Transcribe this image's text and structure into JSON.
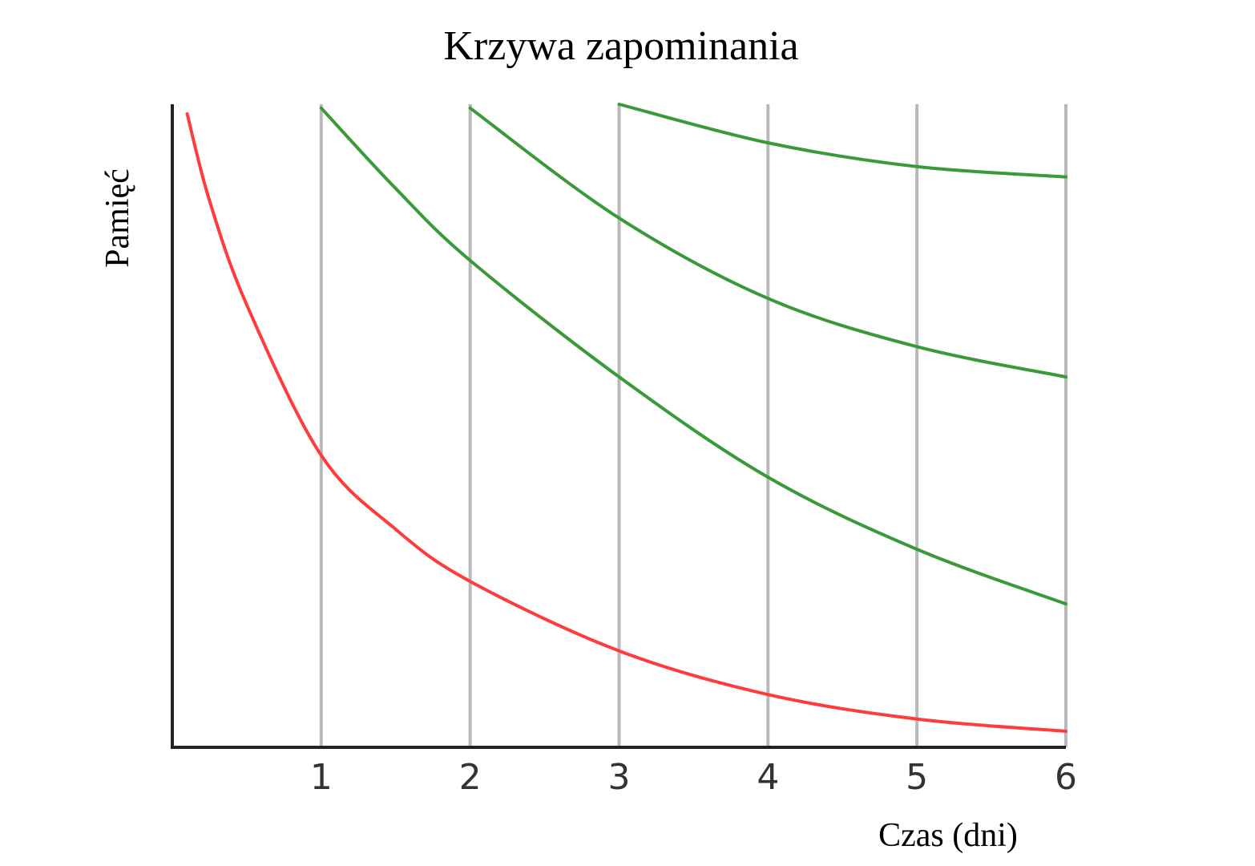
{
  "chart_data": {
    "type": "line",
    "title": "Krzywa zapominania",
    "x_label": "Czas (dni)",
    "y_label": "Pamięć",
    "x": [
      0.1,
      0.25,
      0.5,
      1,
      1.5,
      2,
      3,
      4,
      5,
      6
    ],
    "series": [
      {
        "color": "#ff3b3b",
        "values": [
          98.5,
          85,
          68.8,
          45.4,
          33.9,
          25.8,
          15,
          8.2,
          4.4,
          2.5
        ]
      },
      {
        "color": "#3a9a3a",
        "values": [
          null,
          null,
          null,
          99.4,
          86.9,
          75.7,
          57.6,
          42,
          30.8,
          22.3
        ]
      },
      {
        "color": "#3a9a3a",
        "values": [
          null,
          null,
          null,
          null,
          null,
          99.4,
          82.3,
          69.8,
          62.3,
          57.6
        ]
      },
      {
        "color": "#3a9a3a",
        "values": [
          null,
          null,
          null,
          null,
          null,
          null,
          100,
          94,
          90.3,
          88.7
        ]
      }
    ],
    "xlim": [
      0,
      6
    ],
    "xticks": [
      1,
      2,
      3,
      4,
      5,
      6
    ],
    "ylim": [
      0,
      100
    ],
    "grid": true
  }
}
